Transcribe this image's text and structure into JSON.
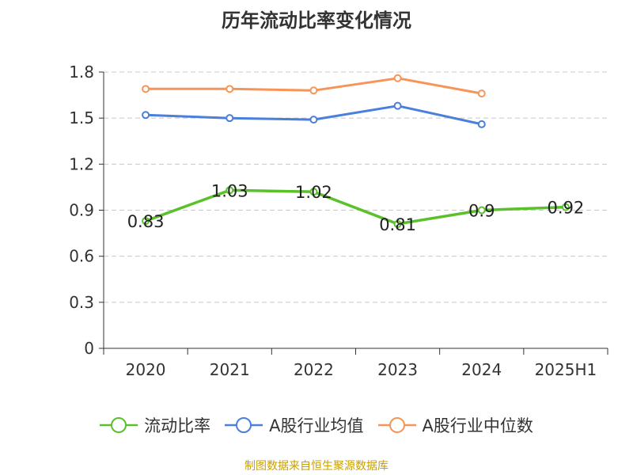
{
  "chart_data": {
    "type": "line",
    "title": "历年流动比率变化情况",
    "categories": [
      "2020",
      "2021",
      "2022",
      "2023",
      "2024",
      "2025H1"
    ],
    "ylim": [
      0,
      1.8
    ],
    "yticks": [
      "0",
      "0.3",
      "0.6",
      "0.9",
      "1.2",
      "1.5",
      "1.8"
    ],
    "grid": true,
    "legend_position": "bottom",
    "series": [
      {
        "name": "流动比率",
        "color": "#5ac12b",
        "values": [
          0.83,
          1.03,
          1.02,
          0.81,
          0.9,
          0.92
        ],
        "labels": [
          "0.83",
          "1.03",
          "1.02",
          "0.81",
          "0.9",
          "0.92"
        ]
      },
      {
        "name": "A股行业均值",
        "color": "#4a7fdc",
        "values": [
          1.52,
          1.5,
          1.49,
          1.58,
          1.46,
          null
        ]
      },
      {
        "name": "A股行业中位数",
        "color": "#f79457",
        "values": [
          1.69,
          1.69,
          1.68,
          1.76,
          1.66,
          null
        ]
      }
    ]
  },
  "source_text": "制图数据来自恒生聚源数据库"
}
